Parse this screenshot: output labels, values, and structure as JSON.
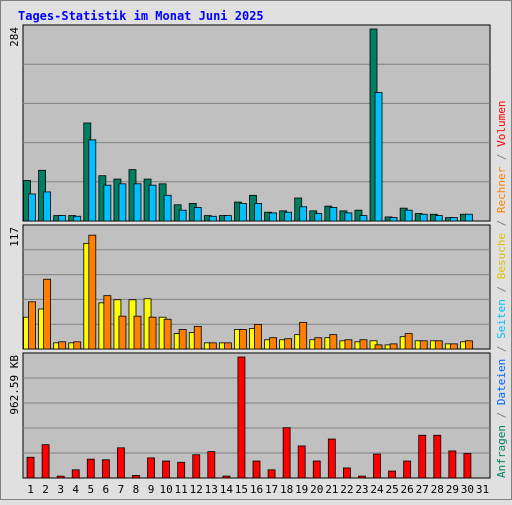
{
  "chart_data": {
    "type": "bar",
    "title": "Tages-Statistik im Monat Juni 2025",
    "categories": [
      "1",
      "2",
      "3",
      "4",
      "5",
      "6",
      "7",
      "8",
      "9",
      "10",
      "11",
      "12",
      "13",
      "14",
      "15",
      "16",
      "17",
      "18",
      "19",
      "20",
      "21",
      "22",
      "23",
      "24",
      "25",
      "26",
      "27",
      "28",
      "29",
      "30",
      "31"
    ],
    "weekend_days": [
      "1",
      "7",
      "8",
      "14",
      "15",
      "21",
      "22",
      "28",
      "29"
    ],
    "colors": {
      "background": "#e0e0e0",
      "plot_bg": "#c0c0c0",
      "grid": "#808080",
      "title": "#0000ff",
      "weekend_label": "#008000",
      "anfragen": "#008060",
      "dateien": "#00c0ff",
      "seiten": "#00c0ff",
      "besuche": "#ffff00",
      "rechner": "#ff8000",
      "volumen": "#ff0000"
    },
    "panels": [
      {
        "name": "top",
        "ymax_label": "284",
        "ymax": 284,
        "series": [
          {
            "name": "Anfragen",
            "color": "#008060",
            "values": [
              60,
              75,
              8,
              8,
              145,
              67,
              62,
              76,
              62,
              55,
              24,
              26,
              8,
              8,
              28,
              38,
              13,
              15,
              34,
              15,
              22,
              15,
              16,
              284,
              6,
              19,
              11,
              10,
              5,
              10,
              null
            ]
          },
          {
            "name": "Dateien",
            "color": "#00c0ff",
            "values": [
              40,
              43,
              8,
              7,
              120,
              53,
              55,
              55,
              53,
              38,
              16,
              20,
              7,
              8,
              26,
              26,
              12,
              13,
              21,
              11,
              20,
              12,
              8,
              190,
              5,
              16,
              10,
              8,
              5,
              10,
              null
            ]
          }
        ]
      },
      {
        "name": "middle",
        "ymax_label": "117",
        "ymax": 117,
        "series": [
          {
            "name": "Besuche",
            "color": "#ffff00",
            "values": [
              31,
              39,
              6,
              6,
              103,
              45,
              48,
              48,
              49,
              31,
              15,
              16,
              6,
              6,
              19,
              20,
              9,
              9,
              14,
              9,
              11,
              8,
              7,
              8,
              4,
              12,
              8,
              8,
              5,
              7,
              null
            ]
          },
          {
            "name": "Seiten",
            "color": "#00c0ff",
            "values": [
              0,
              0,
              0,
              0,
              0,
              0,
              0,
              0,
              0,
              0,
              0,
              0,
              0,
              0,
              0,
              0,
              0,
              0,
              0,
              0,
              0,
              0,
              0,
              0,
              0,
              0,
              0,
              0,
              0,
              0,
              null
            ]
          },
          {
            "name": "Rechner",
            "color": "#ff8000",
            "values": [
              46,
              68,
              7,
              7,
              111,
              52,
              32,
              32,
              31,
              29,
              19,
              22,
              6,
              6,
              19,
              24,
              11,
              10,
              26,
              11,
              14,
              9,
              9,
              4,
              5,
              15,
              8,
              8,
              5,
              8,
              null
            ]
          }
        ]
      },
      {
        "name": "bottom",
        "ymax_label": "962.59 KB",
        "ymax": 962.59,
        "series": [
          {
            "name": "Volumen",
            "color": "#ff0000",
            "values": [
              165,
              265,
              15,
              65,
              150,
              145,
              240,
              20,
              160,
              135,
              125,
              185,
              210,
              15,
              962.59,
              135,
              65,
              400,
              255,
              135,
              310,
              80,
              15,
              190,
              55,
              135,
              340,
              340,
              215,
              195,
              null
            ]
          }
        ]
      }
    ],
    "right_legend": [
      {
        "label": "Anfragen",
        "color": "#008060"
      },
      {
        "label": "/",
        "color": "#808080"
      },
      {
        "label": "Dateien",
        "color": "#0060ff"
      },
      {
        "label": "/",
        "color": "#808080"
      },
      {
        "label": "Seiten",
        "color": "#00c0ff"
      },
      {
        "label": "/",
        "color": "#808080"
      },
      {
        "label": "Besuche",
        "color": "#e0c000"
      },
      {
        "label": "/",
        "color": "#808080"
      },
      {
        "label": "Rechner",
        "color": "#ff8000"
      },
      {
        "label": "/",
        "color": "#808080"
      },
      {
        "label": "Volumen",
        "color": "#ff0000"
      }
    ]
  }
}
